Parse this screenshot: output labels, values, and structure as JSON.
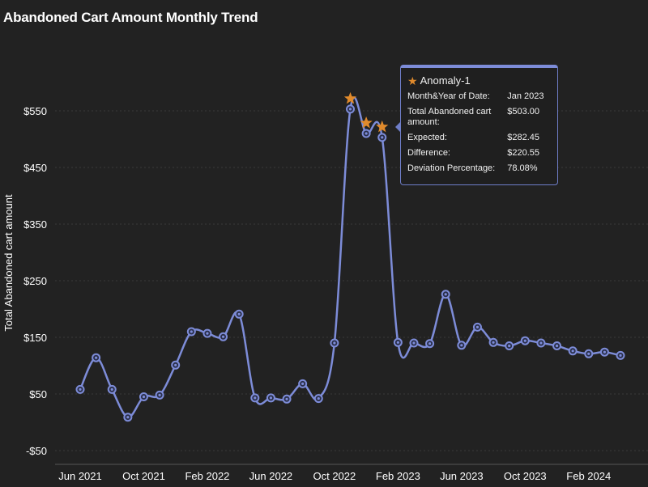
{
  "page": {
    "title": "Abandoned Cart Amount Monthly Trend"
  },
  "colors": {
    "background": "#222222",
    "line": "#7d8cd8",
    "grid": "#3a3a3a",
    "anomaly": "#e08a2c",
    "text": "#ffffff"
  },
  "chart_data": {
    "type": "line",
    "title": "Abandoned Cart Amount Monthly Trend",
    "xlabel": "",
    "ylabel": "Total Abandoned cart amount",
    "x_tick_labels": [
      "Jun 2021",
      "Oct 2021",
      "Feb 2022",
      "Jun 2022",
      "Oct 2022",
      "Feb 2023",
      "Jun 2023",
      "Oct 2023",
      "Feb 2024"
    ],
    "y_ticks": [
      -50,
      50,
      150,
      250,
      350,
      450,
      550
    ],
    "y_tick_labels": [
      "-$50",
      "$50",
      "$150",
      "$250",
      "$350",
      "$450",
      "$550"
    ],
    "ylim": [
      -75,
      620
    ],
    "grid": true,
    "series": [
      {
        "name": "",
        "x": [
          "Jun 2021",
          "Jul 2021",
          "Aug 2021",
          "Sep 2021",
          "Oct 2021",
          "Nov 2021",
          "Dec 2021",
          "Jan 2022",
          "Feb 2022",
          "Mar 2022",
          "Apr 2022",
          "May 2022",
          "Jun 2022",
          "Jul 2022",
          "Aug 2022",
          "Sep 2022",
          "Oct 2022",
          "Nov 2022",
          "Dec 2022",
          "Jan 2023",
          "Feb 2023",
          "Mar 2023",
          "Apr 2023",
          "May 2023",
          "Jun 2023",
          "Jul 2023",
          "Aug 2023",
          "Sep 2023",
          "Oct 2023",
          "Nov 2023",
          "Dec 2023",
          "Jan 2024",
          "Feb 2024",
          "Mar 2024",
          "Apr 2024"
        ],
        "values": [
          58,
          114,
          58,
          9,
          45,
          48,
          101,
          160,
          157,
          151,
          191,
          43,
          43,
          41,
          68,
          42,
          140,
          553,
          510,
          503,
          141,
          140,
          139,
          226,
          136,
          168,
          141,
          135,
          144,
          140,
          135,
          126,
          121,
          124,
          118
        ]
      }
    ],
    "anomalies": [
      {
        "x": "Nov 2022",
        "value": 553
      },
      {
        "x": "Dec 2022",
        "value": 510
      },
      {
        "x": "Jan 2023",
        "value": 503
      }
    ]
  },
  "tooltip": {
    "title": "Anomaly-1",
    "rows": [
      {
        "label": "Month&Year of Date:",
        "value": "Jan 2023"
      },
      {
        "label": "Total Abandoned cart amount:",
        "value": "$503.00"
      },
      {
        "label": "Expected:",
        "value": "$282.45"
      },
      {
        "label": "Difference:",
        "value": "$220.55"
      },
      {
        "label": "Deviation Percentage:",
        "value": "78.08%"
      }
    ]
  }
}
